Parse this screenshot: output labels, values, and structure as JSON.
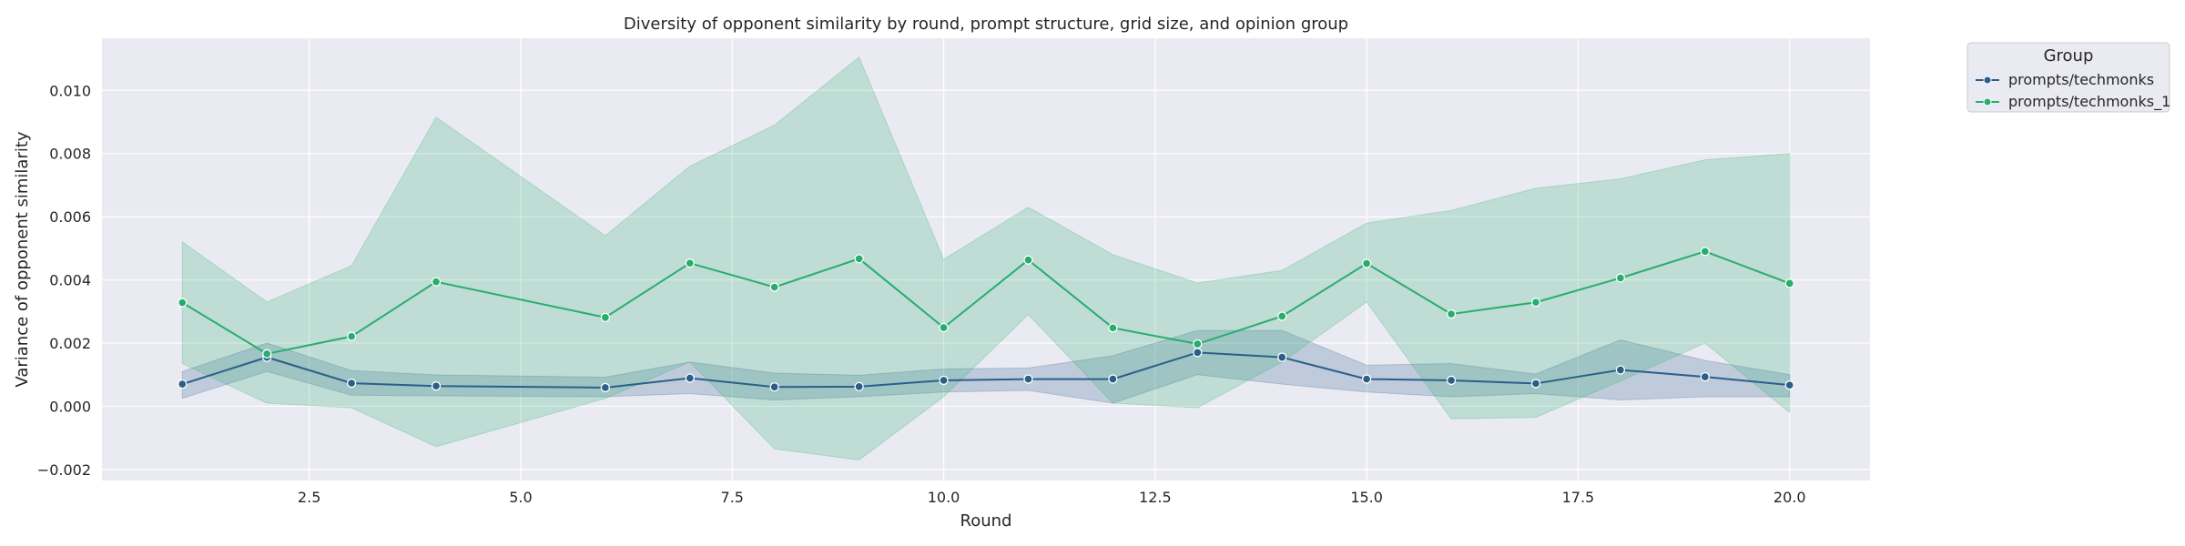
{
  "chart_data": {
    "type": "line",
    "title": "Diversity of opponent similarity by round, prompt structure, grid size, and opinion group",
    "xlabel": "Round",
    "ylabel": "Variance of opponent similarity",
    "xlim": [
      0.05,
      20.95
    ],
    "ylim": [
      -0.00235,
      0.01165
    ],
    "xticks": [
      2.5,
      5.0,
      7.5,
      10.0,
      12.5,
      15.0,
      17.5,
      20.0
    ],
    "xtick_labels": [
      "2.5",
      "5.0",
      "7.5",
      "10.0",
      "12.5",
      "15.0",
      "17.5",
      "20.0"
    ],
    "yticks": [
      -0.002,
      0.0,
      0.002,
      0.004,
      0.006,
      0.008,
      0.01
    ],
    "ytick_labels": [
      "−0.002",
      "0.000",
      "0.002",
      "0.004",
      "0.006",
      "0.008",
      "0.010"
    ],
    "grid": true,
    "legend": {
      "title": "Group",
      "placement": "outside-top-right"
    },
    "x": [
      1,
      2,
      3,
      4,
      6,
      7,
      8,
      9,
      10,
      11,
      12,
      13,
      14,
      15,
      16,
      17,
      18,
      19,
      20
    ],
    "series": [
      {
        "name": "prompts/techmonks",
        "color": "#2b5f8a",
        "values": [
          0.0007,
          0.00155,
          0.00073,
          0.00064,
          0.00059,
          0.00089,
          0.00061,
          0.00062,
          0.00082,
          0.00086,
          0.00086,
          0.0017,
          0.00155,
          0.00086,
          0.00082,
          0.00072,
          0.00115,
          0.00093,
          0.00067
        ],
        "lower": [
          0.00025,
          0.0011,
          0.00035,
          0.00033,
          0.0003,
          0.0004,
          0.0002,
          0.0003,
          0.00045,
          0.0005,
          0.0001,
          0.001,
          0.0007,
          0.00045,
          0.0003,
          0.0004,
          0.0002,
          0.0003,
          0.0003
        ],
        "upper": [
          0.0011,
          0.002,
          0.00113,
          0.00099,
          0.00092,
          0.0014,
          0.00105,
          0.00098,
          0.00118,
          0.00121,
          0.0016,
          0.0024,
          0.0024,
          0.0013,
          0.00135,
          0.00102,
          0.0021,
          0.00145,
          0.001
        ]
      },
      {
        "name": "prompts/techmonks_1",
        "color": "#27ae6d",
        "values": [
          0.00328,
          0.00166,
          0.00221,
          0.00394,
          0.00281,
          0.00453,
          0.00377,
          0.00467,
          0.00249,
          0.00463,
          0.00248,
          0.00197,
          0.00285,
          0.00452,
          0.00292,
          0.00329,
          0.00406,
          0.0049,
          0.00389
        ],
        "lower": [
          0.00135,
          0.0001,
          -5e-05,
          -0.00128,
          0.00025,
          0.0014,
          -0.00135,
          -0.0017,
          0.0003,
          0.0029,
          0.0001,
          -5e-05,
          0.0014,
          0.0033,
          -0.0004,
          -0.00035,
          0.0008,
          0.002,
          -0.0002
        ],
        "upper": [
          0.0052,
          0.0033,
          0.00445,
          0.00915,
          0.0054,
          0.0076,
          0.0089,
          0.01105,
          0.00465,
          0.0063,
          0.0048,
          0.0039,
          0.0043,
          0.0058,
          0.0062,
          0.0069,
          0.0072,
          0.0078,
          0.008
        ]
      }
    ]
  }
}
